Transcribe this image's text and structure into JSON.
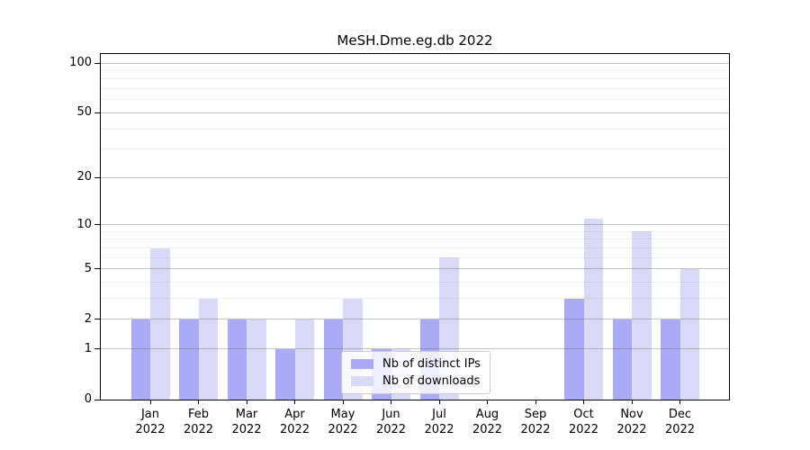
{
  "chart_data": {
    "type": "bar",
    "title": "MeSH.Dme.eg.db 2022",
    "categories": [
      "Jan",
      "Feb",
      "Mar",
      "Apr",
      "May",
      "Jun",
      "Jul",
      "Aug",
      "Sep",
      "Oct",
      "Nov",
      "Dec"
    ],
    "x_year_label": "2022",
    "series": [
      {
        "name": "Nb of distinct IPs",
        "color": "#aaaaf7",
        "values": [
          2,
          2,
          2,
          1,
          2,
          1,
          2,
          0,
          0,
          3,
          2,
          2
        ]
      },
      {
        "name": "Nb of downloads",
        "color": "#dadaf8",
        "values": [
          7,
          3,
          2,
          2,
          3,
          1,
          6,
          0,
          0,
          11,
          9,
          5
        ]
      }
    ],
    "yscale": "log1p",
    "ylim": [
      0,
      113
    ],
    "yticks": [
      0,
      1,
      2,
      5,
      10,
      20,
      50,
      100
    ],
    "minor_yticks": [
      3,
      4,
      6,
      7,
      8,
      9,
      30,
      40,
      60,
      70,
      80,
      90
    ],
    "grid": true,
    "legend": {
      "position": "lower-center-right-inside",
      "entries": [
        "Nb of distinct IPs",
        "Nb of downloads"
      ]
    }
  },
  "colors": {
    "background": "#ffffff",
    "bar_distinct_ips": "#aaaaf7",
    "bar_downloads": "#dadaf8",
    "major_grid": "rgba(85,85,85,0.35)",
    "minor_grid": "rgba(120,120,120,0.12)",
    "axis_spine": "#000000",
    "text": "#000000",
    "legend_border": "#cccccc",
    "legend_background": "rgba(255,255,255,0.8)"
  }
}
